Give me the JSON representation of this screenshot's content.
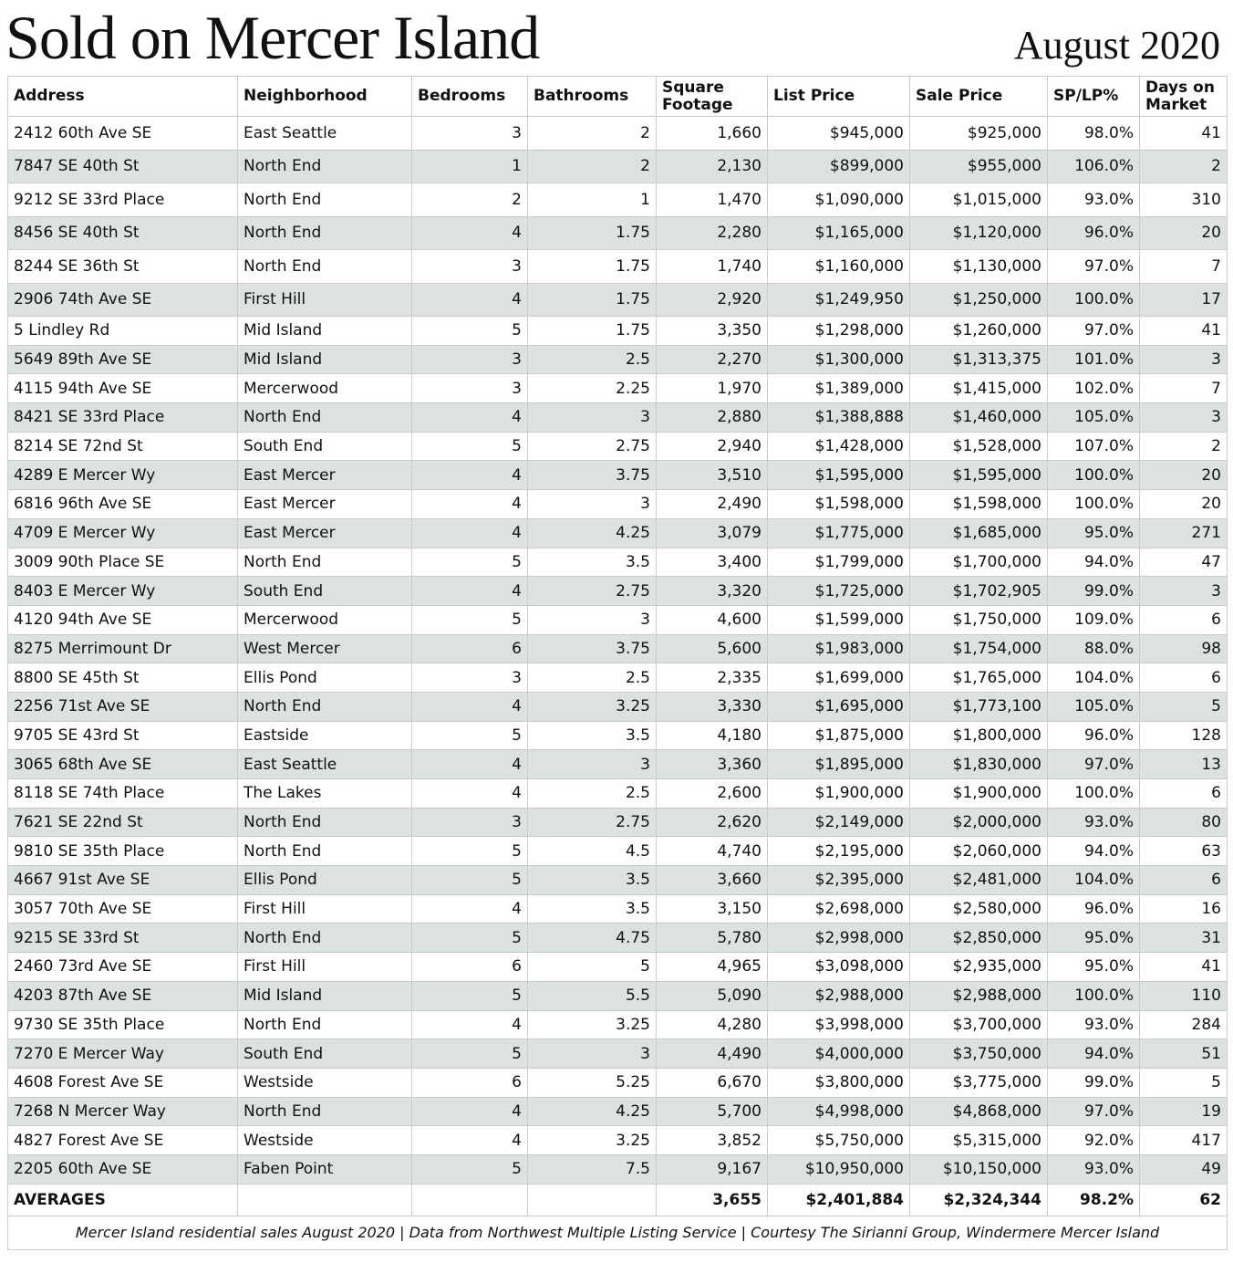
{
  "header": {
    "title": "Sold on Mercer Island",
    "date": "August 2020"
  },
  "table": {
    "columns": [
      "Address",
      "Neighborhood",
      "Bedrooms",
      "Bathrooms",
      "Square Footage",
      "List Price",
      "Sale Price",
      "SP/LP%",
      "Days on Market"
    ],
    "rows": [
      [
        "2412 60th Ave SE",
        "East Seattle",
        "3",
        "2",
        "1,660",
        "$945,000",
        "$925,000",
        "98.0%",
        "41"
      ],
      [
        "7847 SE 40th St",
        "North End",
        "1",
        "2",
        "2,130",
        "$899,000",
        "$955,000",
        "106.0%",
        "2"
      ],
      [
        "9212 SE 33rd Place",
        "North End",
        "2",
        "1",
        "1,470",
        "$1,090,000",
        "$1,015,000",
        "93.0%",
        "310"
      ],
      [
        "8456 SE 40th St",
        "North End",
        "4",
        "1.75",
        "2,280",
        "$1,165,000",
        "$1,120,000",
        "96.0%",
        "20"
      ],
      [
        "8244 SE 36th St",
        "North End",
        "3",
        "1.75",
        "1,740",
        "$1,160,000",
        "$1,130,000",
        "97.0%",
        "7"
      ],
      [
        "2906 74th Ave SE",
        "First Hill",
        "4",
        "1.75",
        "2,920",
        "$1,249,950",
        "$1,250,000",
        "100.0%",
        "17"
      ],
      [
        "5 Lindley Rd",
        "Mid Island",
        "5",
        "1.75",
        "3,350",
        "$1,298,000",
        "$1,260,000",
        "97.0%",
        "41"
      ],
      [
        "5649 89th Ave SE",
        "Mid Island",
        "3",
        "2.5",
        "2,270",
        "$1,300,000",
        "$1,313,375",
        "101.0%",
        "3"
      ],
      [
        "4115 94th Ave SE",
        "Mercerwood",
        "3",
        "2.25",
        "1,970",
        "$1,389,000",
        "$1,415,000",
        "102.0%",
        "7"
      ],
      [
        "8421 SE 33rd Place",
        "North End",
        "4",
        "3",
        "2,880",
        "$1,388,888",
        "$1,460,000",
        "105.0%",
        "3"
      ],
      [
        "8214 SE 72nd St",
        "South End",
        "5",
        "2.75",
        "2,940",
        "$1,428,000",
        "$1,528,000",
        "107.0%",
        "2"
      ],
      [
        "4289 E Mercer Wy",
        "East Mercer",
        "4",
        "3.75",
        "3,510",
        "$1,595,000",
        "$1,595,000",
        "100.0%",
        "20"
      ],
      [
        "6816 96th Ave SE",
        "East Mercer",
        "4",
        "3",
        "2,490",
        "$1,598,000",
        "$1,598,000",
        "100.0%",
        "20"
      ],
      [
        "4709 E Mercer Wy",
        "East Mercer",
        "4",
        "4.25",
        "3,079",
        "$1,775,000",
        "$1,685,000",
        "95.0%",
        "271"
      ],
      [
        "3009 90th Place SE",
        "North End",
        "5",
        "3.5",
        "3,400",
        "$1,799,000",
        "$1,700,000",
        "94.0%",
        "47"
      ],
      [
        "8403 E Mercer Wy",
        "South End",
        "4",
        "2.75",
        "3,320",
        "$1,725,000",
        "$1,702,905",
        "99.0%",
        "3"
      ],
      [
        "4120 94th Ave SE",
        "Mercerwood",
        "5",
        "3",
        "4,600",
        "$1,599,000",
        "$1,750,000",
        "109.0%",
        "6"
      ],
      [
        "8275 Merrimount Dr",
        "West Mercer",
        "6",
        "3.75",
        "5,600",
        "$1,983,000",
        "$1,754,000",
        "88.0%",
        "98"
      ],
      [
        "8800 SE 45th St",
        "Ellis Pond",
        "3",
        "2.5",
        "2,335",
        "$1,699,000",
        "$1,765,000",
        "104.0%",
        "6"
      ],
      [
        "2256 71st Ave SE",
        "North End",
        "4",
        "3.25",
        "3,330",
        "$1,695,000",
        "$1,773,100",
        "105.0%",
        "5"
      ],
      [
        "9705 SE 43rd St",
        "Eastside",
        "5",
        "3.5",
        "4,180",
        "$1,875,000",
        "$1,800,000",
        "96.0%",
        "128"
      ],
      [
        "3065 68th Ave SE",
        "East Seattle",
        "4",
        "3",
        "3,360",
        "$1,895,000",
        "$1,830,000",
        "97.0%",
        "13"
      ],
      [
        "8118 SE 74th Place",
        "The Lakes",
        "4",
        "2.5",
        "2,600",
        "$1,900,000",
        "$1,900,000",
        "100.0%",
        "6"
      ],
      [
        "7621 SE 22nd St",
        "North End",
        "3",
        "2.75",
        "2,620",
        "$2,149,000",
        "$2,000,000",
        "93.0%",
        "80"
      ],
      [
        "9810 SE 35th Place",
        "North End",
        "5",
        "4.5",
        "4,740",
        "$2,195,000",
        "$2,060,000",
        "94.0%",
        "63"
      ],
      [
        "4667 91st Ave SE",
        "Ellis Pond",
        "5",
        "3.5",
        "3,660",
        "$2,395,000",
        "$2,481,000",
        "104.0%",
        "6"
      ],
      [
        "3057 70th Ave SE",
        "First Hill",
        "4",
        "3.5",
        "3,150",
        "$2,698,000",
        "$2,580,000",
        "96.0%",
        "16"
      ],
      [
        "9215 SE 33rd St",
        "North End",
        "5",
        "4.75",
        "5,780",
        "$2,998,000",
        "$2,850,000",
        "95.0%",
        "31"
      ],
      [
        "2460 73rd Ave SE",
        "First Hill",
        "6",
        "5",
        "4,965",
        "$3,098,000",
        "$2,935,000",
        "95.0%",
        "41"
      ],
      [
        "4203 87th Ave SE",
        "Mid Island",
        "5",
        "5.5",
        "5,090",
        "$2,988,000",
        "$2,988,000",
        "100.0%",
        "110"
      ],
      [
        "9730 SE 35th Place",
        "North End",
        "4",
        "3.25",
        "4,280",
        "$3,998,000",
        "$3,700,000",
        "93.0%",
        "284"
      ],
      [
        "7270 E Mercer Way",
        "South End",
        "5",
        "3",
        "4,490",
        "$4,000,000",
        "$3,750,000",
        "94.0%",
        "51"
      ],
      [
        "4608 Forest Ave SE",
        "Westside",
        "6",
        "5.25",
        "6,670",
        "$3,800,000",
        "$3,775,000",
        "99.0%",
        "5"
      ],
      [
        "7268 N Mercer Way",
        "North End",
        "4",
        "4.25",
        "5,700",
        "$4,998,000",
        "$4,868,000",
        "97.0%",
        "19"
      ],
      [
        "4827 Forest Ave SE",
        "Westside",
        "4",
        "3.25",
        "3,852",
        "$5,750,000",
        "$5,315,000",
        "92.0%",
        "417"
      ],
      [
        "2205 60th Ave SE",
        "Faben Point",
        "5",
        "7.5",
        "9,167",
        "$10,950,000",
        "$10,150,000",
        "93.0%",
        "49"
      ]
    ],
    "averages": {
      "label": "AVERAGES",
      "square_footage": "3,655",
      "list_price": "$2,401,884",
      "sale_price": "$2,324,344",
      "sp_lp": "98.2%",
      "days_on_market": "62"
    }
  },
  "footer": "Mercer Island residential sales August 2020 | Data from Northwest Multiple Listing Service | Courtesy The Sirianni Group, Windermere Mercer Island"
}
